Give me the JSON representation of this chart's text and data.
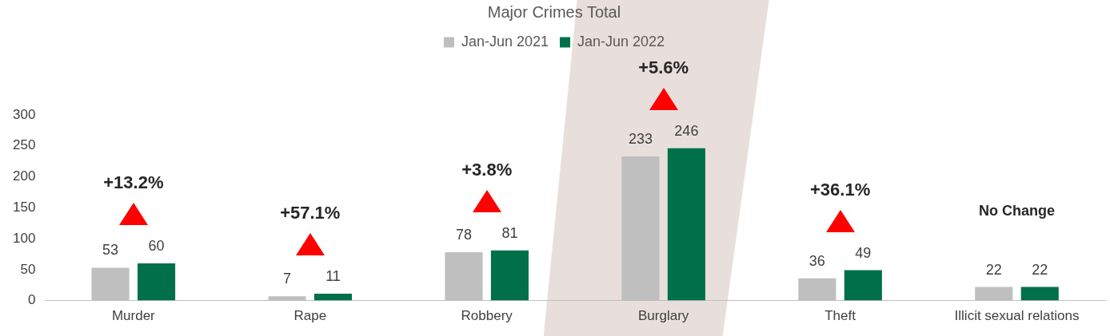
{
  "chart_data": {
    "type": "bar",
    "title": "Major Crimes Total",
    "categories": [
      "Murder",
      "Rape",
      "Robbery",
      "Burglary",
      "Theft",
      "Illicit sexual relations"
    ],
    "series": [
      {
        "name": "Jan-Jun 2021",
        "color": "#bfbfbf",
        "values": [
          53,
          7,
          78,
          233,
          36,
          22
        ]
      },
      {
        "name": "Jan-Jun 2022",
        "color": "#00704a",
        "values": [
          60,
          11,
          81,
          246,
          49,
          22
        ]
      }
    ],
    "ylim": [
      0,
      300
    ],
    "yticks": [
      0,
      50,
      100,
      150,
      200,
      250,
      300
    ],
    "grid": false,
    "legend": "top",
    "data_labels": true,
    "annotations": [
      "+13.2%",
      "+57.1%",
      "+3.8%",
      "+5.6%",
      "+36.1%",
      "No Change"
    ]
  }
}
